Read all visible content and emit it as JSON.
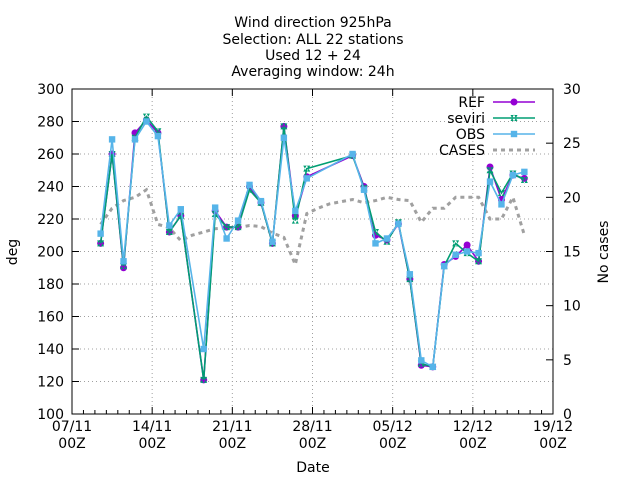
{
  "chart_data": {
    "type": "line",
    "title_lines": [
      "Wind direction 925hPa",
      "Selection: ALL      22 stations",
      "Used 12 + 24",
      "Averaging window: 24h"
    ],
    "xlabel": "Date",
    "ylabel": "deg",
    "y2label": "No cases",
    "xlim": [
      0,
      42
    ],
    "ylim": [
      100,
      300
    ],
    "y2lim": [
      0,
      30
    ],
    "xticks": [
      {
        "x": 0,
        "label": [
          "07/11",
          "00Z"
        ]
      },
      {
        "x": 7,
        "label": [
          "14/11",
          "00Z"
        ]
      },
      {
        "x": 14,
        "label": [
          "21/11",
          "00Z"
        ]
      },
      {
        "x": 21,
        "label": [
          "28/11",
          "00Z"
        ]
      },
      {
        "x": 28,
        "label": [
          "05/12",
          "00Z"
        ]
      },
      {
        "x": 35,
        "label": [
          "12/12",
          "00Z"
        ]
      },
      {
        "x": 42,
        "label": [
          "19/12",
          "00Z"
        ]
      }
    ],
    "yticks": [
      "100",
      "120",
      "140",
      "160",
      "180",
      "200",
      "220",
      "240",
      "260",
      "280",
      "300"
    ],
    "y2ticks": [
      "0",
      "5",
      "10",
      "15",
      "20",
      "25",
      "30"
    ],
    "grid": true,
    "legend_position": "top-right",
    "series": [
      {
        "name": "REF",
        "color": "#9400d3",
        "style": "line-points",
        "points": [
          [
            2.5,
            205
          ],
          [
            3.5,
            260
          ],
          [
            4.5,
            190
          ],
          [
            5.5,
            273
          ],
          [
            6.5,
            281
          ],
          [
            7.5,
            273
          ],
          [
            8.5,
            212
          ],
          [
            9.5,
            222
          ],
          [
            11.5,
            121
          ],
          [
            12.5,
            225
          ],
          [
            13.5,
            215
          ],
          [
            14.5,
            215
          ],
          [
            15.5,
            240
          ],
          [
            16.5,
            230
          ],
          [
            17.5,
            205
          ],
          [
            18.5,
            277
          ],
          [
            19.5,
            222
          ],
          [
            20.5,
            246
          ],
          [
            24.5,
            259
          ],
          [
            25.5,
            240
          ],
          [
            26.5,
            210
          ],
          [
            27.5,
            207
          ],
          [
            28.5,
            217
          ],
          [
            29.5,
            183
          ],
          [
            30.5,
            130
          ],
          [
            31.5,
            129
          ],
          [
            32.5,
            192
          ],
          [
            33.5,
            197
          ],
          [
            34.5,
            204
          ],
          [
            35.5,
            194
          ],
          [
            36.5,
            252
          ],
          [
            37.5,
            232
          ],
          [
            38.5,
            247
          ],
          [
            39.5,
            245
          ]
        ]
      },
      {
        "name": "seviri",
        "color": "#009e73",
        "style": "line-points",
        "points": [
          [
            2.5,
            205
          ],
          [
            3.5,
            260
          ],
          [
            4.5,
            191
          ],
          [
            5.5,
            270
          ],
          [
            6.5,
            283
          ],
          [
            7.5,
            274
          ],
          [
            8.5,
            212
          ],
          [
            9.5,
            222
          ],
          [
            11.5,
            121
          ],
          [
            12.5,
            223
          ],
          [
            13.5,
            215
          ],
          [
            14.5,
            215
          ],
          [
            15.5,
            238
          ],
          [
            16.5,
            230
          ],
          [
            17.5,
            205
          ],
          [
            18.5,
            277
          ],
          [
            19.5,
            219
          ],
          [
            20.5,
            251
          ],
          [
            24.5,
            259
          ],
          [
            25.5,
            239
          ],
          [
            26.5,
            212
          ],
          [
            27.5,
            206
          ],
          [
            28.5,
            218
          ],
          [
            29.5,
            183
          ],
          [
            30.5,
            131
          ],
          [
            31.5,
            129
          ],
          [
            32.5,
            191
          ],
          [
            33.5,
            205
          ],
          [
            34.5,
            199
          ],
          [
            35.5,
            194
          ],
          [
            36.5,
            250
          ],
          [
            37.5,
            236
          ],
          [
            38.5,
            248
          ],
          [
            39.5,
            244
          ]
        ]
      },
      {
        "name": "OBS",
        "color": "#56b4e9",
        "style": "line-points",
        "points": [
          [
            2.5,
            211
          ],
          [
            3.5,
            269
          ],
          [
            4.5,
            194
          ],
          [
            5.5,
            269
          ],
          [
            6.5,
            280
          ],
          [
            7.5,
            271
          ],
          [
            8.5,
            216
          ],
          [
            9.5,
            226
          ],
          [
            11.5,
            140
          ],
          [
            12.5,
            227
          ],
          [
            13.5,
            208
          ],
          [
            14.5,
            219
          ],
          [
            15.5,
            241
          ],
          [
            16.5,
            231
          ],
          [
            17.5,
            206
          ],
          [
            18.5,
            270
          ],
          [
            19.5,
            225
          ],
          [
            20.5,
            245
          ],
          [
            24.5,
            260
          ],
          [
            25.5,
            238
          ],
          [
            26.5,
            205
          ],
          [
            27.5,
            208
          ],
          [
            28.5,
            217
          ],
          [
            29.5,
            186
          ],
          [
            30.5,
            133
          ],
          [
            31.5,
            129
          ],
          [
            32.5,
            191
          ],
          [
            33.5,
            198
          ],
          [
            34.5,
            200
          ],
          [
            35.5,
            199
          ],
          [
            36.5,
            243
          ],
          [
            37.5,
            229
          ],
          [
            38.5,
            247
          ],
          [
            39.5,
            249
          ]
        ]
      },
      {
        "name": "CASES",
        "color": "#a0a0a0",
        "style": "dashed",
        "axis": "y2",
        "points": [
          [
            2.5,
            17.5
          ],
          [
            3.5,
            19
          ],
          [
            4.5,
            19.7
          ],
          [
            5.5,
            20
          ],
          [
            6.5,
            20.7
          ],
          [
            7.5,
            17.5
          ],
          [
            8.5,
            17.2
          ],
          [
            9.5,
            16
          ],
          [
            10.5,
            16.5
          ],
          [
            11.5,
            16.8
          ],
          [
            12.5,
            17.1
          ],
          [
            13.5,
            17.2
          ],
          [
            14.5,
            17.2
          ],
          [
            15.5,
            17.4
          ],
          [
            16.5,
            17.3
          ],
          [
            17.5,
            16.7
          ],
          [
            18.5,
            16.3
          ],
          [
            19.5,
            13.8
          ],
          [
            20.5,
            18.5
          ],
          [
            21.5,
            19
          ],
          [
            22.5,
            19.4
          ],
          [
            23.5,
            19.6
          ],
          [
            24.5,
            19.8
          ],
          [
            25.5,
            19.5
          ],
          [
            26.5,
            19.7
          ],
          [
            27.5,
            20
          ],
          [
            28.5,
            19.8
          ],
          [
            29.5,
            19.7
          ],
          [
            30.5,
            17.7
          ],
          [
            31.5,
            19
          ],
          [
            32.5,
            19
          ],
          [
            33.5,
            20
          ],
          [
            34.5,
            20
          ],
          [
            35.5,
            20
          ],
          [
            36.5,
            18
          ],
          [
            37.5,
            18
          ],
          [
            38.5,
            20
          ],
          [
            39.5,
            16.5
          ]
        ]
      }
    ]
  }
}
